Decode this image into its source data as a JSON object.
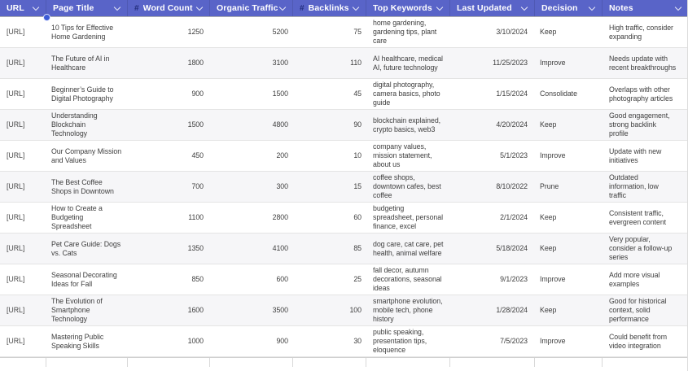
{
  "table": {
    "columns": [
      {
        "id": "url",
        "label": "URL",
        "hash": false,
        "align": "left"
      },
      {
        "id": "title",
        "label": "Page Title",
        "hash": false,
        "align": "left"
      },
      {
        "id": "word_count",
        "label": "Word Count",
        "hash": true,
        "align": "right"
      },
      {
        "id": "organic_traffic",
        "label": "Organic Traffic",
        "hash": false,
        "align": "right"
      },
      {
        "id": "backlinks",
        "label": "Backlinks",
        "hash": true,
        "align": "right"
      },
      {
        "id": "top_keywords",
        "label": "Top Keywords",
        "hash": false,
        "align": "left"
      },
      {
        "id": "last_updated",
        "label": "Last Updated",
        "hash": false,
        "align": "right"
      },
      {
        "id": "decision",
        "label": "Decision",
        "hash": false,
        "align": "left"
      },
      {
        "id": "notes",
        "label": "Notes",
        "hash": false,
        "align": "left"
      }
    ],
    "rows": [
      {
        "url": "[URL]",
        "title": "10 Tips for Effective Home Gardening",
        "word_count": "1250",
        "organic_traffic": "5200",
        "backlinks": "75",
        "top_keywords": "home gardening, gardening tips, plant care",
        "last_updated": "3/10/2024",
        "decision": "Keep",
        "notes": "High traffic, consider expanding"
      },
      {
        "url": "[URL]",
        "title": "The Future of AI in Healthcare",
        "word_count": "1800",
        "organic_traffic": "3100",
        "backlinks": "110",
        "top_keywords": "AI healthcare, medical AI, future technology",
        "last_updated": "11/25/2023",
        "decision": "Improve",
        "notes": "Needs update with recent breakthroughs"
      },
      {
        "url": "[URL]",
        "title": "Beginner’s Guide to Digital Photography",
        "word_count": "900",
        "organic_traffic": "1500",
        "backlinks": "45",
        "top_keywords": "digital photography, camera basics, photo guide",
        "last_updated": "1/15/2024",
        "decision": "Consolidate",
        "notes": "Overlaps with other photography articles"
      },
      {
        "url": "[URL]",
        "title": "Understanding Blockchain Technology",
        "word_count": "1500",
        "organic_traffic": "4800",
        "backlinks": "90",
        "top_keywords": "blockchain explained, crypto basics, web3",
        "last_updated": "4/20/2024",
        "decision": "Keep",
        "notes": "Good engagement, strong backlink profile"
      },
      {
        "url": "[URL]",
        "title": "Our Company Mission and Values",
        "word_count": "450",
        "organic_traffic": "200",
        "backlinks": "10",
        "top_keywords": "company values, mission statement, about us",
        "last_updated": "5/1/2023",
        "decision": "Improve",
        "notes": "Update with new initiatives"
      },
      {
        "url": "[URL]",
        "title": "The Best Coffee Shops in Downtown",
        "word_count": "700",
        "organic_traffic": "300",
        "backlinks": "15",
        "top_keywords": "coffee shops, downtown cafes, best coffee",
        "last_updated": "8/10/2022",
        "decision": "Prune",
        "notes": "Outdated information, low traffic"
      },
      {
        "url": "[URL]",
        "title": "How to Create a Budgeting Spreadsheet",
        "word_count": "1100",
        "organic_traffic": "2800",
        "backlinks": "60",
        "top_keywords": "budgeting spreadsheet, personal finance, excel",
        "last_updated": "2/1/2024",
        "decision": "Keep",
        "notes": "Consistent traffic, evergreen content"
      },
      {
        "url": "[URL]",
        "title": "Pet Care Guide: Dogs vs. Cats",
        "word_count": "1350",
        "organic_traffic": "4100",
        "backlinks": "85",
        "top_keywords": "dog care, cat care, pet health, animal welfare",
        "last_updated": "5/18/2024",
        "decision": "Keep",
        "notes": "Very popular, consider a follow-up series"
      },
      {
        "url": "[URL]",
        "title": "Seasonal Decorating Ideas for Fall",
        "word_count": "850",
        "organic_traffic": "600",
        "backlinks": "25",
        "top_keywords": "fall decor, autumn decorations, seasonal ideas",
        "last_updated": "9/1/2023",
        "decision": "Improve",
        "notes": "Add more visual examples"
      },
      {
        "url": "[URL]",
        "title": "The Evolution of Smartphone Technology",
        "word_count": "1600",
        "organic_traffic": "3500",
        "backlinks": "100",
        "top_keywords": "smartphone evolution, mobile tech, phone history",
        "last_updated": "1/28/2024",
        "decision": "Keep",
        "notes": "Good for historical context, solid performance"
      },
      {
        "url": "[URL]",
        "title": "Mastering Public Speaking Skills",
        "word_count": "1000",
        "organic_traffic": "900",
        "backlinks": "30",
        "top_keywords": "public speaking, presentation tips, eloquence",
        "last_updated": "7/5/2023",
        "decision": "Improve",
        "notes": "Could benefit from video integration"
      }
    ]
  },
  "colors": {
    "header_bg": "#5964c8",
    "header_text": "#ffffff",
    "hash_icon": "#232e7d",
    "resize_handle": "#3c5bd6",
    "row_alt_bg": "#f6f6f8",
    "row_border": "#e4e4e4",
    "body_text": "#3e3e3e"
  }
}
